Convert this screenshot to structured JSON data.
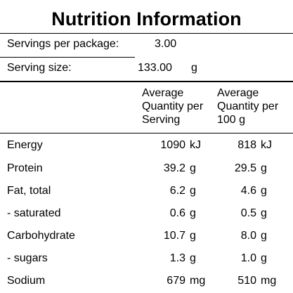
{
  "title": "Nutrition Information",
  "servings_per_package": {
    "label": "Servings per package:",
    "value": "3.00"
  },
  "serving_size": {
    "label": "Serving size:",
    "value": "133.00",
    "unit": "g"
  },
  "column_headers": {
    "per_serving": [
      "Average",
      "Quantity per",
      "Serving"
    ],
    "per_100g": [
      "Average",
      "Quantity per",
      "100 g"
    ]
  },
  "rows": [
    {
      "name": "Energy",
      "per_serving": "1090",
      "per_serving_unit": "kJ",
      "per_100g": "818",
      "per_100g_unit": "kJ"
    },
    {
      "name": "Protein",
      "per_serving": "39.2",
      "per_serving_unit": "g",
      "per_100g": "29.5",
      "per_100g_unit": "g"
    },
    {
      "name": "Fat, total",
      "per_serving": "6.2",
      "per_serving_unit": "g",
      "per_100g": "4.6",
      "per_100g_unit": "g"
    },
    {
      "name": "- saturated",
      "per_serving": "0.6",
      "per_serving_unit": "g",
      "per_100g": "0.5",
      "per_100g_unit": "g"
    },
    {
      "name": "Carbohydrate",
      "per_serving": "10.7",
      "per_serving_unit": "g",
      "per_100g": "8.0",
      "per_100g_unit": "g"
    },
    {
      "name": "- sugars",
      "per_serving": "1.3",
      "per_serving_unit": "g",
      "per_100g": "1.0",
      "per_100g_unit": "g"
    },
    {
      "name": "Sodium",
      "per_serving": "679",
      "per_serving_unit": "mg",
      "per_100g": "510",
      "per_100g_unit": "mg"
    }
  ]
}
